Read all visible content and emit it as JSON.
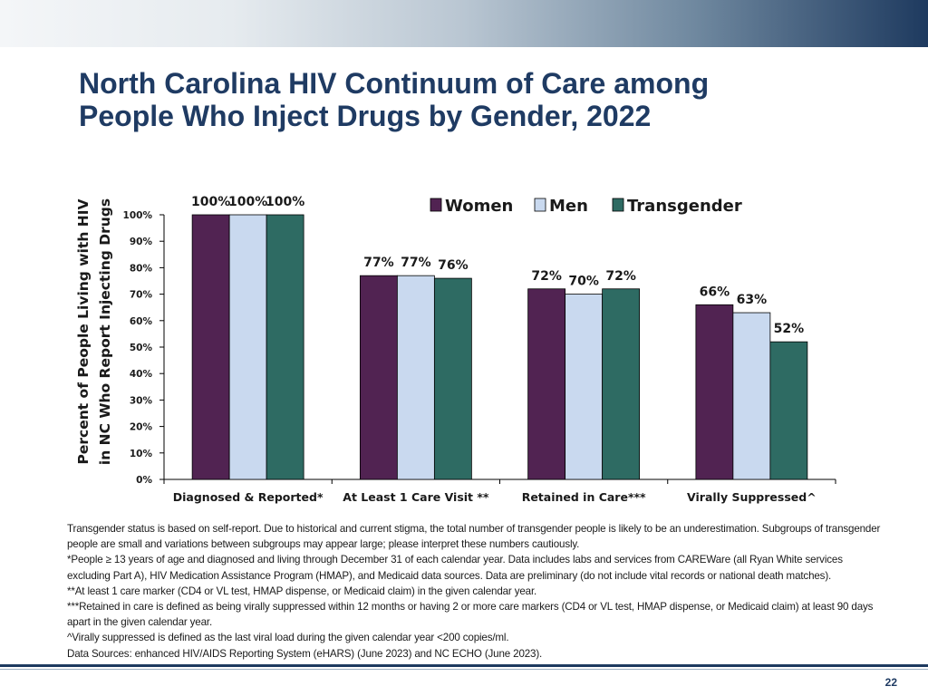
{
  "slide": {
    "title_line1": "North Carolina HIV Continuum of Care among",
    "title_line2": "People Who Inject Drugs by Gender, 2022",
    "page_number": "22",
    "colors": {
      "title": "#1f3b63",
      "band_dark": "#1e3a5f"
    }
  },
  "chart_data": {
    "type": "bar",
    "title": "",
    "ylabel_line1": "Percent of People Living with HIV",
    "ylabel_line2": "in NC Who Report Injecting Drugs",
    "xlabel": "",
    "ylim": [
      0,
      100
    ],
    "yticks": [
      0,
      10,
      20,
      30,
      40,
      50,
      60,
      70,
      80,
      90,
      100
    ],
    "ytick_labels": [
      "0%",
      "10%",
      "20%",
      "30%",
      "40%",
      "50%",
      "60%",
      "70%",
      "80%",
      "90%",
      "100%"
    ],
    "categories": [
      "Diagnosed & Reported*",
      "At Least 1 Care Visit **",
      "Retained in Care***",
      "Virally Suppressed^"
    ],
    "series": [
      {
        "name": "Women",
        "color": "#512352",
        "values": [
          100,
          77,
          72,
          66
        ],
        "labels": [
          "100%",
          "77%",
          "72%",
          "66%"
        ]
      },
      {
        "name": "Men",
        "color": "#c9d9ef",
        "values": [
          100,
          77,
          70,
          63
        ],
        "labels": [
          "100%",
          "77%",
          "70%",
          "63%"
        ]
      },
      {
        "name": "Transgender",
        "color": "#2e6b63",
        "values": [
          100,
          76,
          72,
          52
        ],
        "labels": [
          "100%",
          "76%",
          "72%",
          "52%"
        ]
      }
    ],
    "legend_position": "top-right",
    "grid": false
  },
  "footnotes": [
    "Transgender status is based on self-report. Due to historical and current stigma, the total number of transgender people is likely to be an underestimation. Subgroups of transgender people are small and variations between subgroups may appear large; please interpret these numbers cautiously.",
    "*People ≥ 13 years of age and diagnosed and living through December 31 of each calendar year. Data includes labs and services from CAREWare (all Ryan White services excluding Part A), HIV Medication Assistance Program (HMAP), and Medicaid data sources. Data are preliminary (do not include vital records or national death matches).",
    "**At least 1 care marker (CD4 or VL test, HMAP dispense, or Medicaid claim) in the given calendar year.",
    "***Retained in care is defined as being virally suppressed within 12 months or having 2 or more care markers (CD4 or VL test, HMAP dispense, or Medicaid claim) at least 90 days apart in the given calendar year.",
    "^Virally suppressed is defined as the last viral load during the given calendar year <200 copies/ml.",
    "Data Sources: enhanced HIV/AIDS Reporting System (eHARS) (June 2023) and NC ECHO (June 2023)."
  ]
}
